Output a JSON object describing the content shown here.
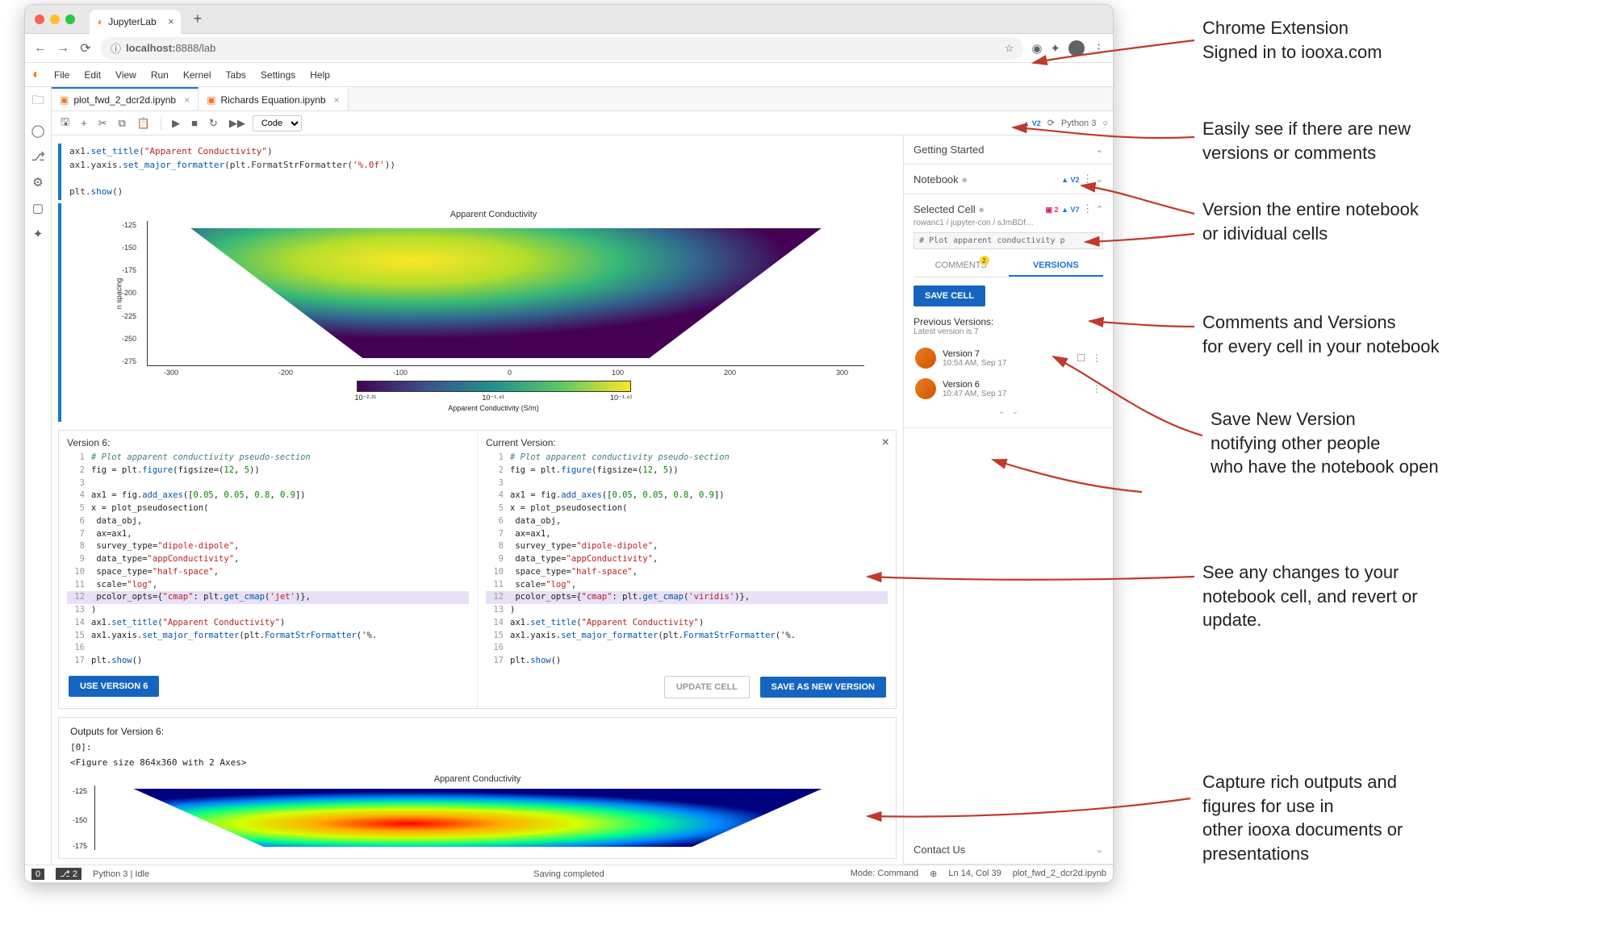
{
  "browser": {
    "tab_title": "JupyterLab",
    "url_host": "localhost:",
    "url_port_path": "8888/lab"
  },
  "jupyter": {
    "menu": [
      "File",
      "Edit",
      "View",
      "Run",
      "Kernel",
      "Tabs",
      "Settings",
      "Help"
    ],
    "tabs": [
      {
        "label": "plot_fwd_2_dcr2d.ipynb"
      },
      {
        "label": "Richards Equation.ipynb"
      }
    ],
    "toolbar": {
      "celltype": "Code",
      "kernel_badge": "▲ V2",
      "kernel": "Python 3"
    }
  },
  "topcode": {
    "l1": "ax1.set_title(\"Apparent Conductivity\")",
    "l2": "ax1.yaxis.set_major_formatter(plt.FormatStrFormatter('%.0f'))",
    "l3": "plt.show()"
  },
  "chart1": {
    "title": "Apparent Conductivity",
    "ylabel": "n spacing",
    "yticks": [
      "-125",
      "-150",
      "-175",
      "-200",
      "-225",
      "-250",
      "-275"
    ],
    "xticks": [
      "-300",
      "-200",
      "-100",
      "0",
      "100",
      "200",
      "300"
    ],
    "cbar_ticks": [
      "10⁻²·²¹",
      "10⁻¹·⁹¹",
      "10⁻¹·⁶¹"
    ],
    "cbar_label": "Apparent Conductivity (S/m)",
    "cmap": "viridis"
  },
  "diff": {
    "left_title": "Version 6:",
    "right_title": "Current Version:",
    "code_lines": [
      {
        "n": 1,
        "type": "comment",
        "t": "# Plot apparent conductivity pseudo-section"
      },
      {
        "n": 2,
        "t": "fig = plt.figure(figsize=(12, 5))"
      },
      {
        "n": 3,
        "t": ""
      },
      {
        "n": 4,
        "t": "ax1 = fig.add_axes([0.05, 0.05, 0.8, 0.9])"
      },
      {
        "n": 5,
        "t": "x = plot_pseudosection("
      },
      {
        "n": 6,
        "t": "    data_obj,"
      },
      {
        "n": 7,
        "t": "    ax=ax1,"
      },
      {
        "n": 8,
        "t": "    survey_type=\"dipole-dipole\","
      },
      {
        "n": 9,
        "t": "    data_type=\"appConductivity\","
      },
      {
        "n": 10,
        "t": "    space_type=\"half-space\","
      },
      {
        "n": 11,
        "t": "    scale=\"log\","
      },
      {
        "n": 12,
        "t": "    pcolor_opts={\"cmap\": plt.get_cmap('jet')},",
        "alt": "    pcolor_opts={\"cmap\": plt.get_cmap('viridis')},",
        "hl": true
      },
      {
        "n": 13,
        "t": ")"
      },
      {
        "n": 14,
        "t": "ax1.set_title(\"Apparent Conductivity\")"
      },
      {
        "n": 15,
        "t": "ax1.yaxis.set_major_formatter(plt.FormatStrFormatter('%."
      },
      {
        "n": 16,
        "t": ""
      },
      {
        "n": 17,
        "t": "plt.show()"
      }
    ],
    "btn_use": "USE VERSION 6",
    "btn_update": "UPDATE CELL",
    "btn_save": "SAVE AS NEW VERSION"
  },
  "outputs": {
    "title": "Outputs for Version 6:",
    "idx": "[0]:",
    "figtext": "<Figure size 864x360 with 2 Axes>",
    "chart_title": "Apparent Conductivity"
  },
  "sidepanel": {
    "s1": "Getting Started",
    "s2": "Notebook",
    "s2_badge": "▲ V2",
    "s3": "Selected Cell",
    "s3_badge_c": "▣ 2",
    "s3_badge_v": "▲ V7",
    "crumb": "rowanc1 / jupyter-con / sJmBDf…",
    "cellprev": "# Plot apparent conductivity p",
    "tab_comments": "COMMENTS",
    "tab_comments_n": "2",
    "tab_versions": "VERSIONS",
    "btn_save": "SAVE CELL",
    "prev_title": "Previous Versions:",
    "prev_sub": "Latest version is 7",
    "v7": {
      "t": "Version 7",
      "d": "10:54 AM, Sep 17"
    },
    "v6": {
      "t": "Version 6",
      "d": "10:47 AM, Sep 17"
    },
    "s4": "Contact Us"
  },
  "status": {
    "left1": "0",
    "left2": "⎇ 2",
    "left3": "Python 3 | Idle",
    "center": "Saving completed",
    "r1": "Mode: Command",
    "r2": "Ln 14, Col 39",
    "r3": "plot_fwd_2_dcr2d.ipynb"
  },
  "annotations": {
    "a1": "Chrome Extension\nSigned in to iooxa.com",
    "a2": "Easily see if there are new\nversions or comments",
    "a3": "Version the entire notebook\nor idividual cells",
    "a4": "Comments and Versions\nfor every cell in your notebook",
    "a5": "Save New Version\nnotifying other people\nwho have the notebook open",
    "a6": "See any changes to your\nnotebook cell, and revert or\nupdate.",
    "a7": "Capture rich outputs and\nfigures for use in\nother iooxa documents or\npresentations"
  }
}
